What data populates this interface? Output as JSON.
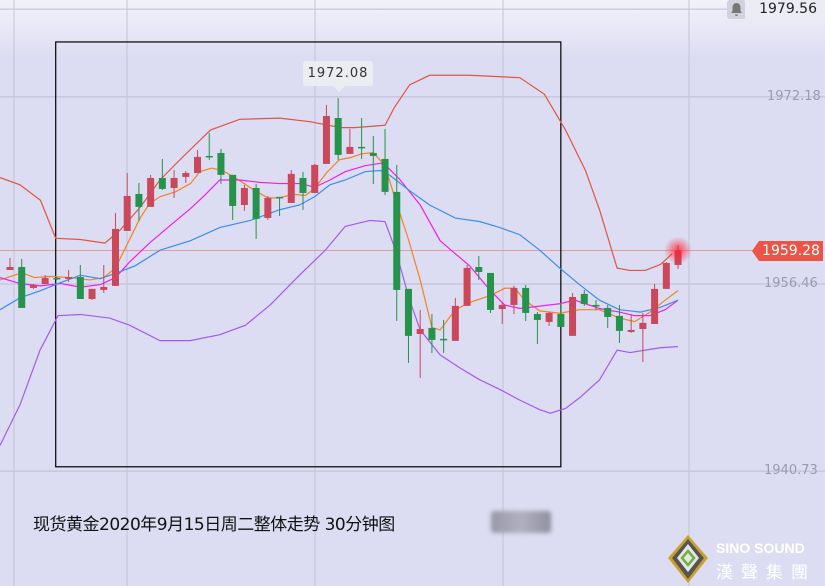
{
  "colors": {
    "up": "#c9485a",
    "down": "#25934a",
    "upper_band": "#e0553f",
    "lower_band": "#a55af0",
    "ma5": "#f5821f",
    "ma10": "#f01ef0",
    "ma20": "#3a8ef0",
    "current_price": "#ea5548"
  },
  "header": {
    "top_price": "1979.56",
    "bell_icon": "bell-icon"
  },
  "tooltip": {
    "high_label": "1972.08"
  },
  "current_price_label": "1959.28",
  "caption": "现货黄金2020年9月15日周二整体走势 30分钟图",
  "logo": {
    "name": "SINO SOUND",
    "name_cn": "漢聲集團"
  },
  "chart_data": {
    "type": "candlestick",
    "title": "现货黄金2020年9月15日周二整体走势 30分钟图",
    "interval": "30min",
    "y_ticks": [
      "1972.18",
      "1956.46",
      "1940.73"
    ],
    "y_tick_values": [
      1972.18,
      1956.46,
      1940.73
    ],
    "ylim": [
      1937.8,
      1980.3
    ],
    "grid": true,
    "up_color_meaning": "red = up, green = down",
    "candles_ohlc": [
      [
        1957.64,
        1958.65,
        1957.64,
        1957.89
      ],
      [
        1957.89,
        1958.57,
        1954.45,
        1954.45
      ],
      [
        1956.13,
        1956.46,
        1956.05,
        1956.38
      ],
      [
        1956.46,
        1957.22,
        1956.46,
        1956.97
      ],
      [
        1956.97,
        1957.05,
        1956.8,
        1956.89
      ],
      [
        1956.89,
        1957.64,
        1956.64,
        1957.05
      ],
      [
        1957.05,
        1958.06,
        1955.2,
        1955.2
      ],
      [
        1955.2,
        1956.05,
        1955.12,
        1956.05
      ],
      [
        1955.96,
        1958.06,
        1955.71,
        1956.21
      ],
      [
        1956.3,
        1962.43,
        1956.3,
        1961.09
      ],
      [
        1960.92,
        1965.79,
        1960.92,
        1963.86
      ],
      [
        1964.03,
        1964.95,
        1961.76,
        1962.94
      ],
      [
        1962.94,
        1965.63,
        1962.94,
        1965.37
      ],
      [
        1965.37,
        1966.97,
        1964.36,
        1964.45
      ],
      [
        1964.53,
        1966.04,
        1963.69,
        1965.37
      ],
      [
        1965.46,
        1965.96,
        1964.95,
        1965.79
      ],
      [
        1965.79,
        1967.73,
        1965.79,
        1967.14
      ],
      [
        1967.22,
        1969.15,
        1966.89,
        1967.14
      ],
      [
        1967.47,
        1967.81,
        1964.87,
        1965.63
      ],
      [
        1965.63,
        1965.63,
        1961.84,
        1963.02
      ],
      [
        1963.1,
        1964.78,
        1962.6,
        1964.53
      ],
      [
        1964.53,
        1964.87,
        1960.25,
        1961.93
      ],
      [
        1962.01,
        1963.86,
        1961.84,
        1963.69
      ],
      [
        1963.78,
        1963.78,
        1962.18,
        1963.69
      ],
      [
        1963.27,
        1966.04,
        1963.27,
        1965.71
      ],
      [
        1965.37,
        1965.88,
        1962.69,
        1964.11
      ],
      [
        1964.11,
        1966.55,
        1964.11,
        1966.47
      ],
      [
        1966.55,
        1971.51,
        1966.55,
        1970.58
      ],
      [
        1970.41,
        1972.08,
        1966.89,
        1967.31
      ],
      [
        1967.39,
        1969.49,
        1967.39,
        1967.98
      ],
      [
        1967.98,
        1970.41,
        1966.97,
        1967.89
      ],
      [
        1967.47,
        1968.9,
        1964.87,
        1967.22
      ],
      [
        1966.97,
        1969.49,
        1963.94,
        1964.2
      ],
      [
        1964.2,
        1966.47,
        1953.36,
        1955.96
      ],
      [
        1956.05,
        1956.05,
        1949.83,
        1952.1
      ],
      [
        1952.26,
        1954.28,
        1948.57,
        1952.68
      ],
      [
        1952.77,
        1953.94,
        1950.67,
        1951.76
      ],
      [
        1951.85,
        1953.44,
        1950.67,
        1951.76
      ],
      [
        1951.68,
        1955.29,
        1951.68,
        1954.62
      ],
      [
        1954.62,
        1958.06,
        1954.62,
        1957.81
      ],
      [
        1957.89,
        1958.82,
        1956.8,
        1957.47
      ],
      [
        1957.39,
        1957.39,
        1954.03,
        1954.28
      ],
      [
        1954.36,
        1954.95,
        1953.1,
        1954.7
      ],
      [
        1954.7,
        1956.3,
        1953.94,
        1956.13
      ],
      [
        1956.13,
        1956.38,
        1953.36,
        1954.03
      ],
      [
        1953.94,
        1954.11,
        1951.42,
        1953.44
      ],
      [
        1953.27,
        1954.11,
        1952.94,
        1954.03
      ],
      [
        1953.94,
        1954.78,
        1952.85,
        1952.85
      ],
      [
        1952.1,
        1955.71,
        1952.1,
        1955.37
      ],
      [
        1955.63,
        1955.96,
        1954.62,
        1954.78
      ],
      [
        1954.7,
        1955.12,
        1954.28,
        1954.62
      ],
      [
        1954.45,
        1954.7,
        1952.77,
        1953.69
      ],
      [
        1953.78,
        1954.7,
        1951.51,
        1952.52
      ],
      [
        1952.43,
        1953.94,
        1952.35,
        1952.6
      ],
      [
        1952.68,
        1954.03,
        1949.91,
        1953.19
      ],
      [
        1953.1,
        1956.46,
        1953.1,
        1956.05
      ],
      [
        1956.05,
        1958.31,
        1956.05,
        1958.23
      ],
      [
        1958.06,
        1959.74,
        1957.73,
        1959.28
      ]
    ],
    "series": [
      {
        "name": "upper_band",
        "color_key": "upper_band",
        "points": [
          [
            -0.85,
            1965.4
          ],
          [
            0.85,
            1964.8
          ],
          [
            2.6,
            1963.5
          ],
          [
            3.9,
            1960.3
          ],
          [
            6.0,
            1960.2
          ],
          [
            8.1,
            1959.9
          ],
          [
            9.4,
            1961.0
          ],
          [
            11.1,
            1962.9
          ],
          [
            12.8,
            1965.2
          ],
          [
            14.5,
            1966.9
          ],
          [
            17.1,
            1969.4
          ],
          [
            19.6,
            1970.3
          ],
          [
            23.0,
            1970.4
          ],
          [
            25.6,
            1970.1
          ],
          [
            28.2,
            1969.6
          ],
          [
            29.4,
            1969.6
          ],
          [
            32.0,
            1969.8
          ],
          [
            32.8,
            1971.3
          ],
          [
            34.1,
            1973.2
          ],
          [
            35.8,
            1974.0
          ],
          [
            39.2,
            1974.0
          ],
          [
            43.5,
            1973.8
          ],
          [
            45.6,
            1972.4
          ],
          [
            47.4,
            1969.4
          ],
          [
            49.1,
            1966.0
          ],
          [
            50.3,
            1962.7
          ],
          [
            51.8,
            1957.8
          ],
          [
            52.9,
            1957.6
          ],
          [
            54.2,
            1957.6
          ],
          [
            55.5,
            1958.1
          ],
          [
            56.5,
            1959.0
          ]
        ]
      },
      {
        "name": "lower_band",
        "color_key": "lower_band",
        "points": [
          [
            -0.85,
            1942.9
          ],
          [
            0.85,
            1946.3
          ],
          [
            2.56,
            1950.9
          ],
          [
            4.1,
            1953.8
          ],
          [
            6.0,
            1953.9
          ],
          [
            8.5,
            1953.6
          ],
          [
            10.2,
            1953.0
          ],
          [
            12.8,
            1951.7
          ],
          [
            15.4,
            1951.7
          ],
          [
            17.9,
            1952.2
          ],
          [
            20.1,
            1953.0
          ],
          [
            22.2,
            1954.7
          ],
          [
            24.7,
            1957.2
          ],
          [
            26.9,
            1959.3
          ],
          [
            28.6,
            1961.3
          ],
          [
            30.7,
            1961.8
          ],
          [
            32.0,
            1961.7
          ],
          [
            32.9,
            1959.3
          ],
          [
            34.1,
            1955.1
          ],
          [
            35.0,
            1952.6
          ],
          [
            36.7,
            1950.5
          ],
          [
            38.4,
            1949.4
          ],
          [
            40.1,
            1948.4
          ],
          [
            41.8,
            1947.6
          ],
          [
            43.5,
            1946.7
          ],
          [
            45.2,
            1945.9
          ],
          [
            46.1,
            1945.6
          ],
          [
            47.4,
            1946.0
          ],
          [
            48.6,
            1946.9
          ],
          [
            50.3,
            1948.4
          ],
          [
            51.8,
            1950.9
          ],
          [
            52.9,
            1950.7
          ],
          [
            55.5,
            1951.1
          ],
          [
            57.0,
            1951.2
          ]
        ]
      },
      {
        "name": "ma5",
        "color_key": "ma5",
        "points": [
          [
            -0.85,
            1956.8
          ],
          [
            1.0,
            1957.4
          ],
          [
            2.1,
            1957.0
          ],
          [
            3.4,
            1957.1
          ],
          [
            5.1,
            1957.0
          ],
          [
            6.8,
            1956.8
          ],
          [
            8.0,
            1957.0
          ],
          [
            9.0,
            1957.8
          ],
          [
            10.2,
            1960.2
          ],
          [
            11.1,
            1962.0
          ],
          [
            11.9,
            1963.2
          ],
          [
            12.8,
            1963.8
          ],
          [
            14.1,
            1964.2
          ],
          [
            15.4,
            1964.9
          ],
          [
            16.2,
            1965.9
          ],
          [
            17.2,
            1966.2
          ],
          [
            18.1,
            1966.0
          ],
          [
            19.2,
            1965.4
          ],
          [
            20.9,
            1964.3
          ],
          [
            22.0,
            1963.7
          ],
          [
            23.0,
            1963.7
          ],
          [
            24.1,
            1964.0
          ],
          [
            25.2,
            1963.9
          ],
          [
            26.0,
            1964.5
          ],
          [
            27.0,
            1965.8
          ],
          [
            28.1,
            1966.9
          ],
          [
            29.1,
            1967.1
          ],
          [
            30.0,
            1967.4
          ],
          [
            31.0,
            1967.5
          ],
          [
            32.0,
            1966.4
          ],
          [
            32.9,
            1963.5
          ],
          [
            34.0,
            1960.2
          ],
          [
            35.0,
            1956.8
          ],
          [
            36.0,
            1952.8
          ],
          [
            36.7,
            1952.6
          ],
          [
            38.0,
            1954.3
          ],
          [
            39.2,
            1954.9
          ],
          [
            41.0,
            1955.5
          ],
          [
            42.2,
            1956.1
          ],
          [
            43.1,
            1956.1
          ],
          [
            43.9,
            1955.1
          ],
          [
            45.2,
            1954.2
          ],
          [
            46.9,
            1954.0
          ],
          [
            48.6,
            1954.3
          ],
          [
            50.3,
            1954.3
          ],
          [
            52.0,
            1953.6
          ],
          [
            53.3,
            1953.3
          ],
          [
            54.6,
            1954.1
          ],
          [
            55.9,
            1955.1
          ],
          [
            57.0,
            1955.9
          ]
        ]
      },
      {
        "name": "ma10",
        "color_key": "ma10",
        "points": [
          [
            -0.85,
            1957.0
          ],
          [
            0.85,
            1956.5
          ],
          [
            2.6,
            1956.3
          ],
          [
            4.3,
            1956.5
          ],
          [
            6.0,
            1956.2
          ],
          [
            7.7,
            1956.4
          ],
          [
            9.0,
            1957.0
          ],
          [
            10.2,
            1958.3
          ],
          [
            11.9,
            1959.9
          ],
          [
            13.7,
            1961.4
          ],
          [
            15.4,
            1962.8
          ],
          [
            16.6,
            1963.9
          ],
          [
            17.9,
            1965.2
          ],
          [
            19.6,
            1965.2
          ],
          [
            21.3,
            1965.0
          ],
          [
            23.0,
            1964.9
          ],
          [
            24.7,
            1964.9
          ],
          [
            26.0,
            1964.6
          ],
          [
            27.3,
            1965.2
          ],
          [
            28.6,
            1965.9
          ],
          [
            30.3,
            1966.4
          ],
          [
            31.6,
            1966.6
          ],
          [
            32.0,
            1966.5
          ],
          [
            33.3,
            1965.2
          ],
          [
            35.0,
            1963.1
          ],
          [
            36.7,
            1960.1
          ],
          [
            38.0,
            1959.0
          ],
          [
            39.2,
            1958.0
          ],
          [
            41.0,
            1955.9
          ],
          [
            42.2,
            1954.7
          ],
          [
            43.5,
            1954.4
          ],
          [
            45.2,
            1954.6
          ],
          [
            46.9,
            1954.8
          ],
          [
            48.2,
            1955.1
          ],
          [
            50.3,
            1954.4
          ],
          [
            52.0,
            1954.1
          ],
          [
            53.3,
            1953.8
          ],
          [
            54.6,
            1953.8
          ],
          [
            55.9,
            1954.3
          ],
          [
            57.0,
            1955.1
          ]
        ]
      },
      {
        "name": "ma20",
        "color_key": "ma20",
        "points": [
          [
            -0.85,
            1954.3
          ],
          [
            0.85,
            1955.3
          ],
          [
            2.6,
            1955.9
          ],
          [
            4.1,
            1956.5
          ],
          [
            6.0,
            1957.2
          ],
          [
            7.7,
            1956.9
          ],
          [
            9.4,
            1957.5
          ],
          [
            10.7,
            1958.0
          ],
          [
            12.8,
            1959.3
          ],
          [
            15.4,
            1960.1
          ],
          [
            17.9,
            1961.2
          ],
          [
            20.5,
            1961.8
          ],
          [
            23.0,
            1962.7
          ],
          [
            24.7,
            1963.1
          ],
          [
            26.0,
            1963.8
          ],
          [
            27.3,
            1964.8
          ],
          [
            28.6,
            1965.2
          ],
          [
            30.3,
            1965.9
          ],
          [
            31.6,
            1966.0
          ],
          [
            32.4,
            1965.6
          ],
          [
            34.1,
            1964.3
          ],
          [
            35.8,
            1963.1
          ],
          [
            38.0,
            1962.0
          ],
          [
            40.1,
            1961.7
          ],
          [
            41.8,
            1961.2
          ],
          [
            43.5,
            1960.6
          ],
          [
            45.2,
            1959.3
          ],
          [
            46.9,
            1957.8
          ],
          [
            48.6,
            1956.4
          ],
          [
            50.3,
            1955.1
          ],
          [
            52.0,
            1954.3
          ],
          [
            53.8,
            1954.1
          ],
          [
            55.5,
            1954.5
          ],
          [
            57.0,
            1955.1
          ]
        ]
      }
    ],
    "current_price": 1959.28,
    "high_marker": {
      "candle_index": 28,
      "value": 1972.08
    },
    "highlight_box_candle_range": [
      3.9,
      47.0
    ],
    "highlight_box_price_range": [
      1941.1,
      1976.8
    ]
  }
}
